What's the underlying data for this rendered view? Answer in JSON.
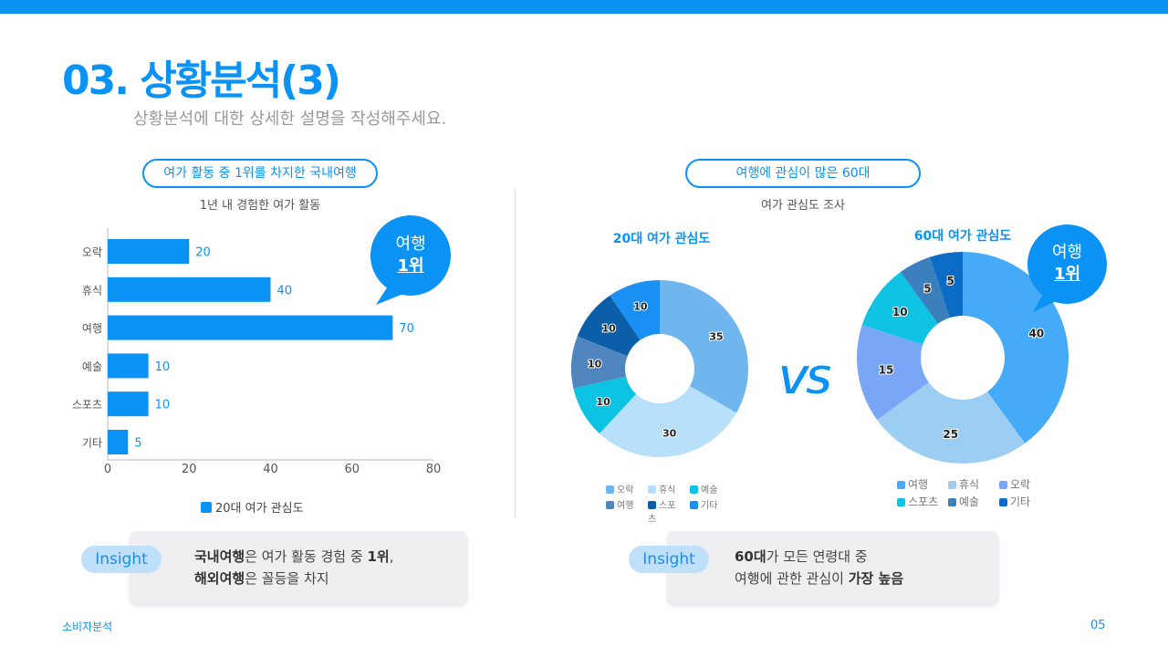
{
  "header": {
    "title": "03. 상황분석(3)",
    "subtitle": "상황분석에 대한 상세한 설명을 작성해주세요."
  },
  "left": {
    "pill": "여가 활동 중 1위를 차지한 국내여행",
    "chart_title": "1년 내 경험한 여가 활동",
    "bubble": {
      "line1": "여행",
      "line2": "1위"
    },
    "legend": "20대 여가 관심도",
    "insight": {
      "tag": "Insight",
      "b1": "국내여행",
      "t1": "은 여가 활동 경험 중 ",
      "b2": "1위",
      "t1end": ",",
      "b3": "해외여행",
      "t2": "은 꼴등을 차지"
    }
  },
  "right": {
    "pill": "여행에 관심이 많은 60대",
    "subtitle": "여가 관심도 조사",
    "vs": "VS",
    "bubble": {
      "line1": "여행",
      "line2": "1위"
    },
    "insight": {
      "tag": "Insight",
      "b1": "60대",
      "t1": "가 모든 연령대 중",
      "t2": "여행에 관한 관심이 ",
      "b2": "가장 높음"
    }
  },
  "footer": {
    "left": "소비자분석",
    "page": "05"
  },
  "colors": {
    "accent": "#0a93f5"
  },
  "chart_data": [
    {
      "type": "bar",
      "orientation": "horizontal",
      "title": "1년 내 경험한 여가 활동",
      "categories": [
        "오락",
        "휴식",
        "여행",
        "예술",
        "스포츠",
        "기타"
      ],
      "values": [
        20,
        40,
        70,
        10,
        10,
        5
      ],
      "xlim": [
        0,
        80
      ],
      "xticks": [
        0,
        20,
        40,
        60,
        80
      ],
      "legend": "20대 여가 관심도",
      "legend_placement": "bottom",
      "color": "#0a93f5"
    },
    {
      "type": "pie",
      "donut": true,
      "title": "20대 여가 관심도",
      "labels": [
        "오락",
        "휴식",
        "예술",
        "여행",
        "스포츠",
        "기타"
      ],
      "values": [
        35,
        30,
        10,
        10,
        10,
        10
      ],
      "colors": [
        "#6fb6ee",
        "#b8e0fb",
        "#0dc3e3",
        "#4f86bf",
        "#0b5fa8",
        "#1a90f5"
      ],
      "legend_placement": "bottom"
    },
    {
      "type": "pie",
      "donut": true,
      "title": "60대 여가 관심도",
      "labels": [
        "여행",
        "휴식",
        "오락",
        "스포츠",
        "예술",
        "기타"
      ],
      "values": [
        40,
        25,
        15,
        10,
        5,
        5
      ],
      "colors": [
        "#45aaf7",
        "#9ccdf3",
        "#7aa6f8",
        "#0ec3e3",
        "#3b7fbd",
        "#0a6cc4"
      ],
      "legend_placement": "bottom"
    }
  ]
}
